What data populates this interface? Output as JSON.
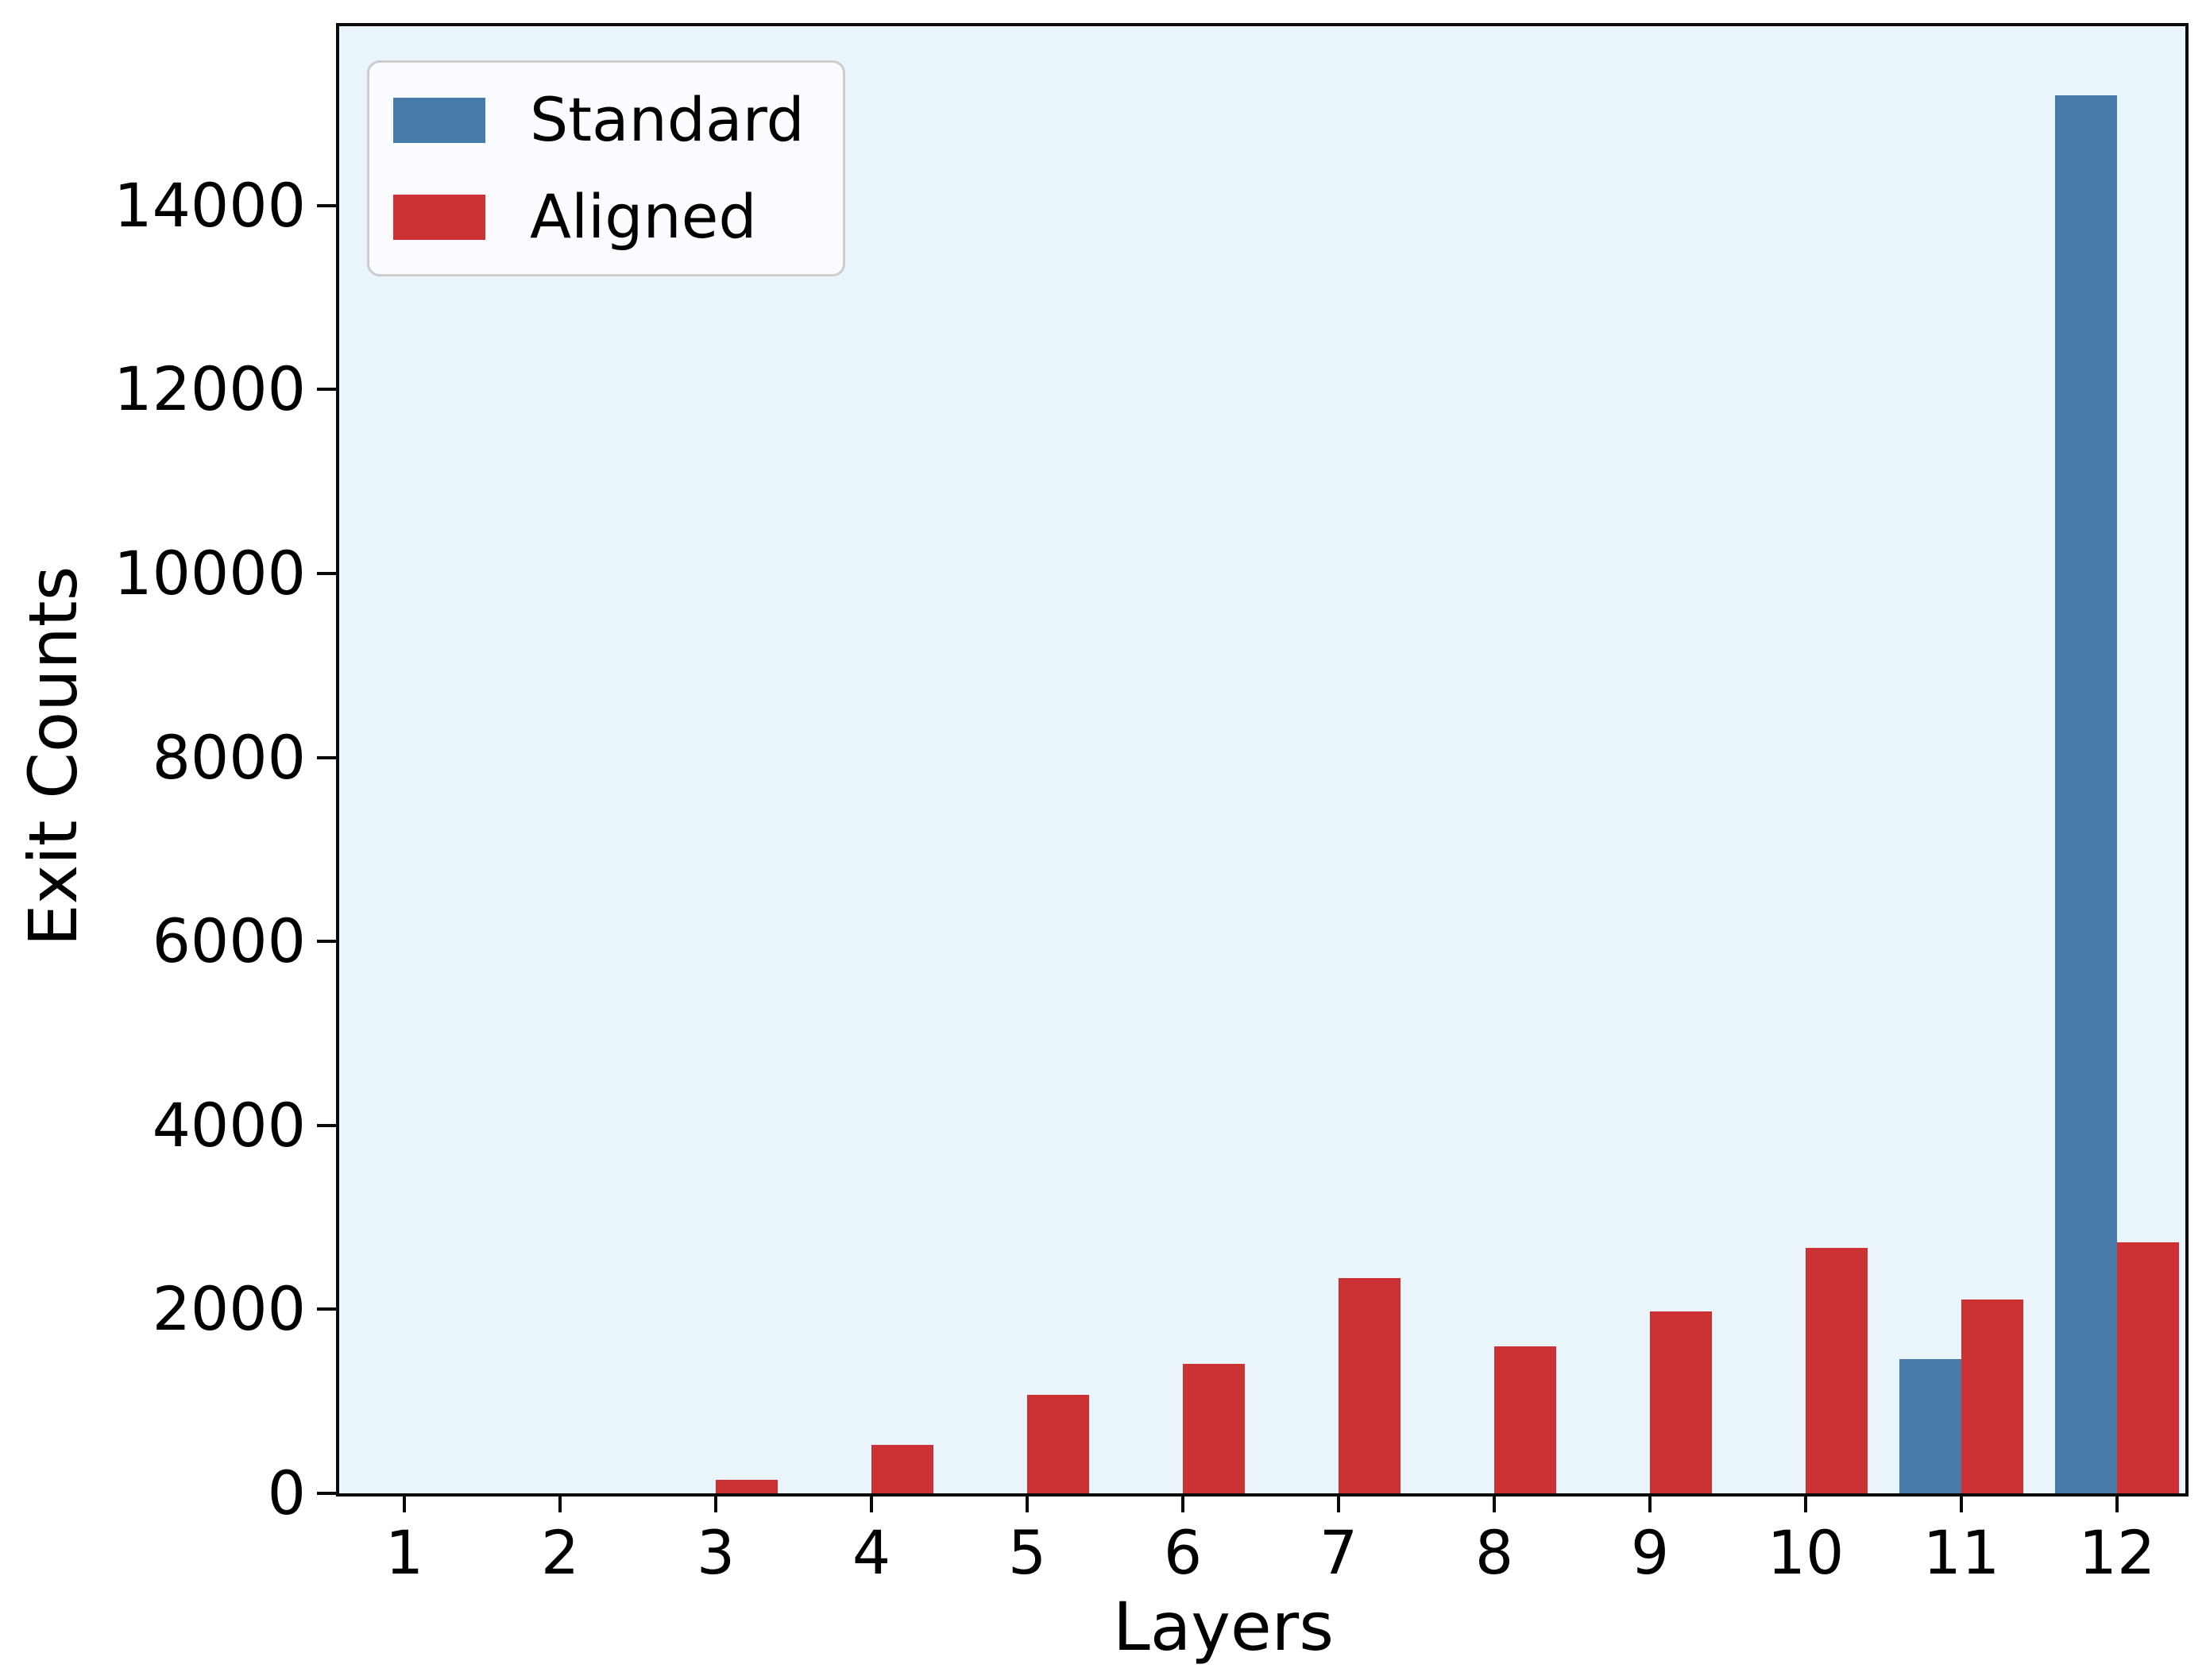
{
  "chart_data": {
    "type": "bar",
    "title": "",
    "xlabel": "Layers",
    "ylabel": "Exit Counts",
    "categories": [
      "1",
      "2",
      "3",
      "4",
      "5",
      "6",
      "7",
      "8",
      "9",
      "10",
      "11",
      "12"
    ],
    "series": [
      {
        "name": "Standard",
        "color": "#477CA8",
        "values": [
          0,
          0,
          0,
          0,
          0,
          0,
          0,
          0,
          0,
          0,
          1460,
          15200
        ]
      },
      {
        "name": "Aligned",
        "color": "#CC3233",
        "values": [
          0,
          0,
          145,
          530,
          1070,
          1410,
          2340,
          1600,
          1980,
          2670,
          2110,
          2730
        ]
      }
    ],
    "ylim": [
      0,
      15950
    ],
    "yticks": [
      0,
      2000,
      4000,
      6000,
      8000,
      10000,
      12000,
      14000
    ],
    "bar_width_frac": 0.4,
    "grid": false,
    "legend_position": "upper-left",
    "plot_background": "#E9F4FB",
    "spine_color": "#0a0a0a"
  }
}
